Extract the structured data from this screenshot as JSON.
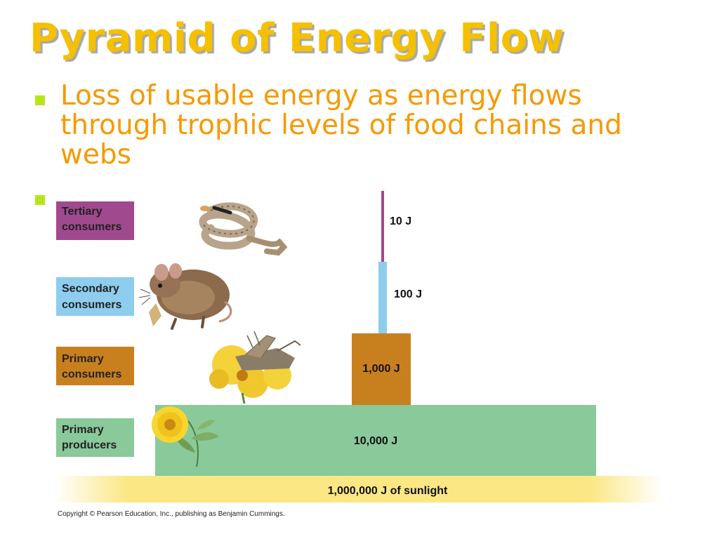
{
  "title": "Pyramid of Energy Flow",
  "bullets": [
    "Loss of usable energy as energy flows through trophic levels of food chains and webs"
  ],
  "levels": [
    {
      "name_line1": "Tertiary",
      "name_line2": "consumers",
      "value": "10 J",
      "color": "#a0498f",
      "organism": "snake-illustration"
    },
    {
      "name_line1": "Secondary",
      "name_line2": "consumers",
      "value": "100 J",
      "color": "#8ecdee",
      "organism": "mouse-illustration"
    },
    {
      "name_line1": "Primary",
      "name_line2": "consumers",
      "value": "1,000 J",
      "color": "#c8801e",
      "organism": "grasshopper-illustration"
    },
    {
      "name_line1": "Primary",
      "name_line2": "producers",
      "value": "10,000 J",
      "color": "#8ac99a",
      "organism": "flower-illustration"
    }
  ],
  "sunlight": {
    "label": "1,000,000 J of sunlight",
    "color": "#fbe784"
  },
  "copyright": "Copyright © Pearson Education, Inc., publishing as Benjamin Cummings."
}
